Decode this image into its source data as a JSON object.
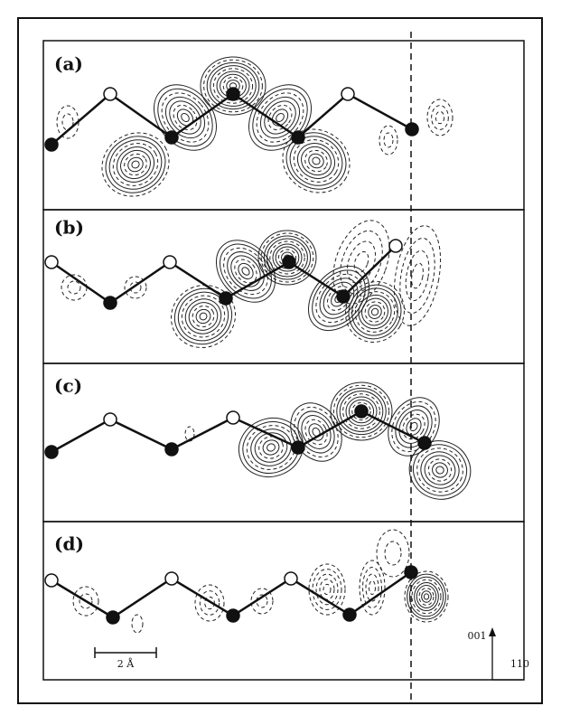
{
  "panels": [
    {
      "label": "(a)"
    },
    {
      "label": "(b)"
    },
    {
      "label": "(c)"
    },
    {
      "label": "(d)"
    }
  ],
  "scale_bar": {
    "label": "2 Å"
  },
  "axes": {
    "vertical": "001",
    "horizontal": "110"
  }
}
